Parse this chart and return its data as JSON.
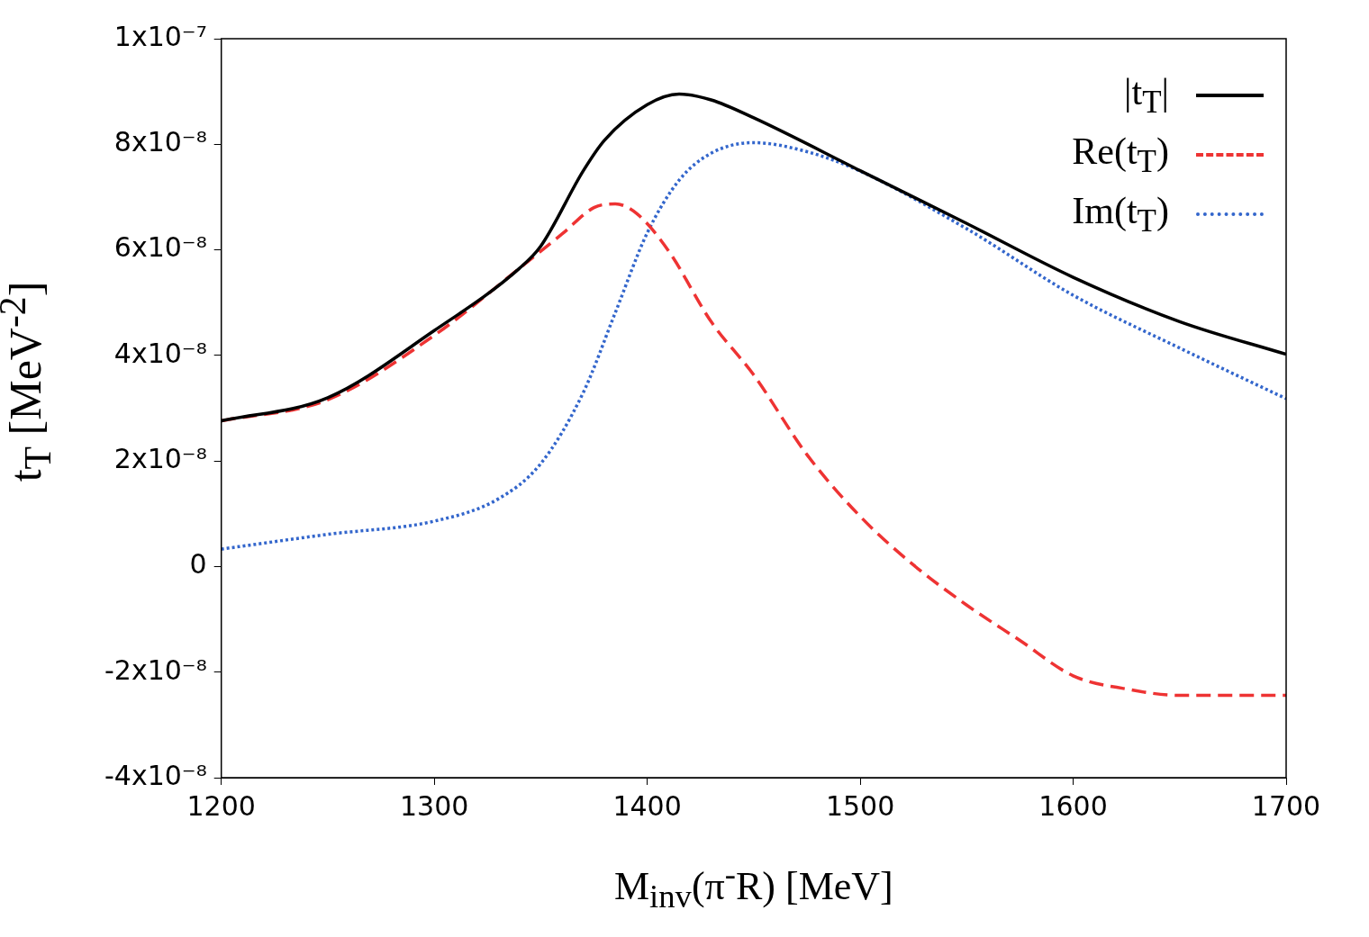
{
  "chart_data": {
    "type": "line",
    "xlabel": "M$_{inv}$(π$^{-}$R) [MeV]",
    "ylabel": "t$_{T}$ [MeV$^{-2}$]",
    "xlim": [
      1200,
      1700
    ],
    "xticks": [
      1200,
      1300,
      1400,
      1500,
      1600,
      1700
    ],
    "ylim": [
      -4e-08,
      1e-07
    ],
    "yticks": [
      {
        "value": -4e-08,
        "label": "-4x10⁻⁸"
      },
      {
        "value": -2e-08,
        "label": "-2x10⁻⁸"
      },
      0,
      {
        "value": 2e-08,
        "label": "2x10⁻⁸"
      },
      {
        "value": 4e-08,
        "label": "4x10⁻⁸"
      },
      {
        "value": 6e-08,
        "label": "6x10⁻⁸"
      },
      {
        "value": 8e-08,
        "label": "8x10⁻⁸"
      },
      {
        "value": 1e-07,
        "label": "1x10⁻⁷"
      }
    ],
    "grid": false,
    "legend": "top right",
    "marker": "none",
    "series": [
      {
        "name": "|t$_{T}$|",
        "color": "#000000",
        "line_style": "solid",
        "x": [
          1200,
          1250,
          1300,
          1340,
          1350,
          1370,
          1380,
          1400,
          1415,
          1430,
          1450,
          1500,
          1550,
          1600,
          1650,
          1700
        ],
        "values": [
          2.76e-08,
          3.2e-08,
          4.47e-08,
          5.65e-08,
          6.07e-08,
          7.5e-08,
          8.08e-08,
          8.75e-08,
          8.95e-08,
          8.84e-08,
          8.5e-08,
          7.5e-08,
          6.5e-08,
          5.48e-08,
          4.64e-08,
          4.02e-08
        ]
      },
      {
        "name": "Re(t$_{T}$)",
        "color": "#ee3333",
        "line_style": "dashed",
        "x": [
          1200,
          1250,
          1300,
          1340,
          1360,
          1375,
          1385,
          1395,
          1410,
          1430,
          1450,
          1475,
          1500,
          1525,
          1550,
          1575,
          1600,
          1625,
          1650,
          1700
        ],
        "values": [
          2.76e-08,
          3.16e-08,
          4.38e-08,
          5.65e-08,
          6.3e-08,
          6.8e-08,
          6.87e-08,
          6.69e-08,
          5.98e-08,
          4.64e-08,
          3.63e-08,
          2.12e-08,
          9.5e-09,
          3e-10,
          -7.3e-09,
          -1.4e-08,
          -2.07e-08,
          -2.32e-08,
          -2.44e-08,
          -2.44e-08
        ]
      },
      {
        "name": "Im(t$_{T}$)",
        "color": "#3366cc",
        "line_style": "dotted",
        "x": [
          1200,
          1250,
          1300,
          1330,
          1350,
          1370,
          1385,
          1400,
          1415,
          1430,
          1450,
          1475,
          1500,
          1550,
          1600,
          1650,
          1700
        ],
        "values": [
          3.3e-09,
          6.1e-09,
          8.6e-09,
          1.28e-08,
          1.95e-08,
          3.3e-08,
          4.81e-08,
          6.32e-08,
          7.32e-08,
          7.83e-08,
          8.03e-08,
          7.86e-08,
          7.49e-08,
          6.4e-08,
          5.14e-08,
          4.14e-08,
          3.18e-08
        ]
      }
    ]
  }
}
